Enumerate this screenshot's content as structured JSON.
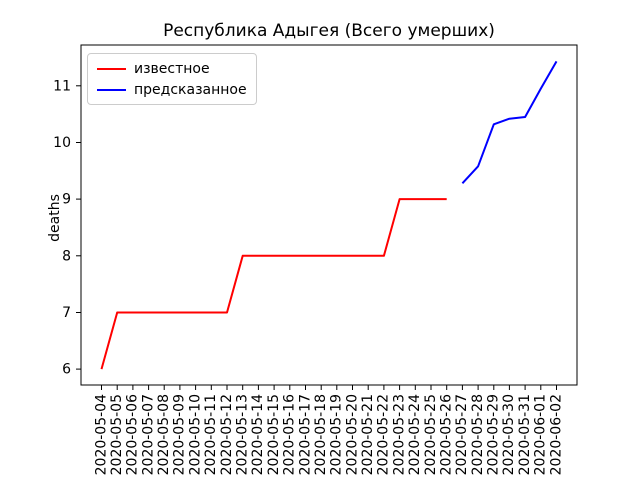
{
  "figure": {
    "background": "#ffffff",
    "text_color": "#000000",
    "spine_color": "#000000"
  },
  "chart_data": {
    "type": "line",
    "title": "Республика Адыгея (Всего умерших)",
    "xlabel": "",
    "ylabel": "deaths",
    "grid": false,
    "legend_position": "upper left",
    "x_categories": [
      "2020-05-04",
      "2020-05-05",
      "2020-05-06",
      "2020-05-07",
      "2020-05-08",
      "2020-05-09",
      "2020-05-10",
      "2020-05-11",
      "2020-05-12",
      "2020-05-13",
      "2020-05-14",
      "2020-05-15",
      "2020-05-16",
      "2020-05-17",
      "2020-05-18",
      "2020-05-19",
      "2020-05-20",
      "2020-05-21",
      "2020-05-22",
      "2020-05-23",
      "2020-05-24",
      "2020-05-25",
      "2020-05-26",
      "2020-05-27",
      "2020-05-28",
      "2020-05-29",
      "2020-05-30",
      "2020-05-31",
      "2020-06-01",
      "2020-06-02"
    ],
    "yticks": [
      6,
      7,
      8,
      9,
      10,
      11
    ],
    "ylim": [
      5.72,
      11.72
    ],
    "series": [
      {
        "name": "известное",
        "color": "#ff0000",
        "start_index": 0,
        "values": [
          6,
          7,
          7,
          7,
          7,
          7,
          7,
          7,
          7,
          8,
          8,
          8,
          8,
          8,
          8,
          8,
          8,
          8,
          8,
          9,
          9,
          9,
          9
        ]
      },
      {
        "name": "предсказанное",
        "color": "#0000ff",
        "start_index": 23,
        "values": [
          9.28,
          9.58,
          10.32,
          10.42,
          10.45,
          10.95,
          11.43
        ]
      }
    ]
  }
}
